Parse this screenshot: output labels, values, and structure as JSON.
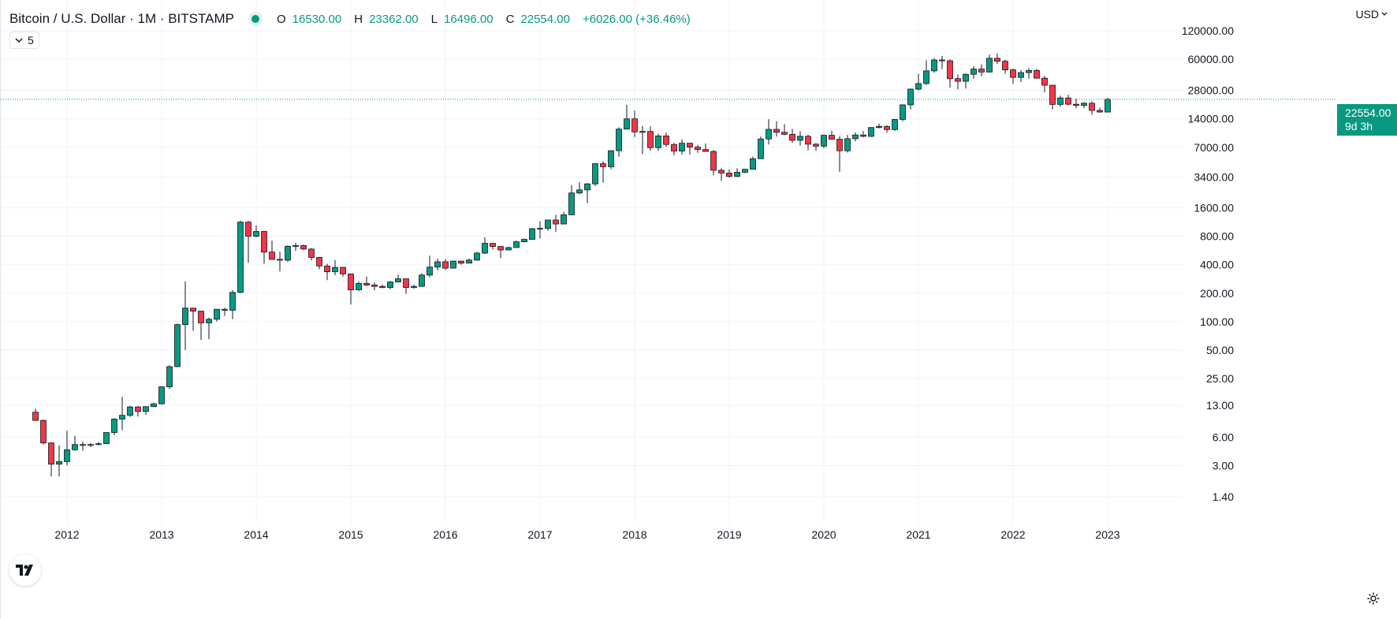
{
  "header": {
    "symbol": "Bitcoin / U.S. Dollar · 1M · BITSTAMP",
    "ohlc": {
      "o_label": "O",
      "o_value": "16530.00",
      "h_label": "H",
      "h_value": "23362.00",
      "l_label": "L",
      "l_value": "16496.00",
      "c_label": "C",
      "c_value": "22554.00",
      "change": "+6026.00 (+36.46%)"
    },
    "indicator_count": "5",
    "currency": "USD"
  },
  "last_price": {
    "value": "22554.00",
    "countdown": "9d 3h"
  },
  "colors": {
    "up": "#089981",
    "down": "#f23645",
    "grid": "#f0f3fa",
    "axis_text": "#131722"
  },
  "icons": [
    "chevron-down-icon",
    "tradingview-logo-icon",
    "gear-icon"
  ],
  "chart_data": {
    "type": "candlestick",
    "scale": "log",
    "interval": "monthly",
    "x": [
      "2011-09",
      "2011-10",
      "2011-11",
      "2011-12",
      "2012-01",
      "2012-02",
      "2012-03",
      "2012-04",
      "2012-05",
      "2012-06",
      "2012-07",
      "2012-08",
      "2012-09",
      "2012-10",
      "2012-11",
      "2012-12",
      "2013-01",
      "2013-02",
      "2013-03",
      "2013-04",
      "2013-05",
      "2013-06",
      "2013-07",
      "2013-08",
      "2013-09",
      "2013-10",
      "2013-11",
      "2013-12",
      "2014-01",
      "2014-02",
      "2014-03",
      "2014-04",
      "2014-05",
      "2014-06",
      "2014-07",
      "2014-08",
      "2014-09",
      "2014-10",
      "2014-11",
      "2014-12",
      "2015-01",
      "2015-02",
      "2015-03",
      "2015-04",
      "2015-05",
      "2015-06",
      "2015-07",
      "2015-08",
      "2015-09",
      "2015-10",
      "2015-11",
      "2015-12",
      "2016-01",
      "2016-02",
      "2016-03",
      "2016-04",
      "2016-05",
      "2016-06",
      "2016-07",
      "2016-08",
      "2016-09",
      "2016-10",
      "2016-11",
      "2016-12",
      "2017-01",
      "2017-02",
      "2017-03",
      "2017-04",
      "2017-05",
      "2017-06",
      "2017-07",
      "2017-08",
      "2017-09",
      "2017-10",
      "2017-11",
      "2017-12",
      "2018-01",
      "2018-02",
      "2018-03",
      "2018-04",
      "2018-05",
      "2018-06",
      "2018-07",
      "2018-08",
      "2018-09",
      "2018-10",
      "2018-11",
      "2018-12",
      "2019-01",
      "2019-02",
      "2019-03",
      "2019-04",
      "2019-05",
      "2019-06",
      "2019-07",
      "2019-08",
      "2019-09",
      "2019-10",
      "2019-11",
      "2019-12",
      "2020-01",
      "2020-02",
      "2020-03",
      "2020-04",
      "2020-05",
      "2020-06",
      "2020-07",
      "2020-08",
      "2020-09",
      "2020-10",
      "2020-11",
      "2020-12",
      "2021-01",
      "2021-02",
      "2021-03",
      "2021-04",
      "2021-05",
      "2021-06",
      "2021-07",
      "2021-08",
      "2021-09",
      "2021-10",
      "2021-11",
      "2021-12",
      "2022-01",
      "2022-02",
      "2022-03",
      "2022-04",
      "2022-05",
      "2022-06",
      "2022-07",
      "2022-08",
      "2022-09",
      "2022-10",
      "2022-11",
      "2022-12",
      "2023-01"
    ],
    "ohlc": [
      [
        11.0,
        12.0,
        9.5,
        9.0
      ],
      [
        9.0,
        9.2,
        5.0,
        5.2
      ],
      [
        5.2,
        5.3,
        2.3,
        3.1
      ],
      [
        3.1,
        4.9,
        2.3,
        3.3
      ],
      [
        3.3,
        7.0,
        3.0,
        4.4
      ],
      [
        4.4,
        6.2,
        4.3,
        5.0
      ],
      [
        5.0,
        5.4,
        4.3,
        4.9
      ],
      [
        4.9,
        5.2,
        4.7,
        5.0
      ],
      [
        5.0,
        5.3,
        4.9,
        5.1
      ],
      [
        5.1,
        6.7,
        5.2,
        6.7
      ],
      [
        6.7,
        9.5,
        6.3,
        9.3
      ],
      [
        9.3,
        16.0,
        7.1,
        10.2
      ],
      [
        10.2,
        12.9,
        9.8,
        12.5
      ],
      [
        12.5,
        12.8,
        9.9,
        11.2
      ],
      [
        11.2,
        12.6,
        10.3,
        12.6
      ],
      [
        12.6,
        13.7,
        12.5,
        13.5
      ],
      [
        13.5,
        20.7,
        13.2,
        20.4
      ],
      [
        20.4,
        34.5,
        19.5,
        33.4
      ],
      [
        33.4,
        95.0,
        33.0,
        93.0
      ],
      [
        93.0,
        266.0,
        50.0,
        139.0
      ],
      [
        139.0,
        140.0,
        80.0,
        129.0
      ],
      [
        129.0,
        130.0,
        64.0,
        97.0
      ],
      [
        97.0,
        110.0,
        65.0,
        106.0
      ],
      [
        106.0,
        130.0,
        100.0,
        135.0
      ],
      [
        135.0,
        140.0,
        115.0,
        132.0
      ],
      [
        132.0,
        215.0,
        106.0,
        204.0
      ],
      [
        204.0,
        1170.0,
        200.0,
        1130.0
      ],
      [
        1130.0,
        1163.0,
        420.0,
        800.0
      ],
      [
        800.0,
        1040.0,
        780.0,
        900.0
      ],
      [
        900.0,
        915.0,
        410.0,
        545.0
      ],
      [
        545.0,
        720.0,
        450.0,
        456.0
      ],
      [
        456.0,
        550.0,
        340.0,
        447.0
      ],
      [
        447.0,
        640.0,
        430.0,
        627.0
      ],
      [
        627.0,
        680.0,
        560.0,
        638.0
      ],
      [
        638.0,
        655.0,
        570.0,
        586.0
      ],
      [
        586.0,
        600.0,
        445.0,
        478.0
      ],
      [
        478.0,
        485.0,
        360.0,
        388.0
      ],
      [
        388.0,
        410.0,
        275.0,
        337.0
      ],
      [
        337.0,
        450.0,
        310.0,
        375.0
      ],
      [
        375.0,
        380.0,
        300.0,
        320.0
      ],
      [
        320.0,
        320.0,
        152.0,
        217.0
      ],
      [
        217.0,
        265.0,
        210.0,
        254.0
      ],
      [
        254.0,
        300.0,
        238.0,
        244.0
      ],
      [
        244.0,
        260.0,
        215.0,
        236.0
      ],
      [
        236.0,
        247.0,
        225.0,
        230.0
      ],
      [
        230.0,
        267.0,
        220.0,
        263.0
      ],
      [
        263.0,
        315.0,
        270.0,
        284.0
      ],
      [
        284.0,
        285.0,
        197.0,
        230.0
      ],
      [
        230.0,
        247.0,
        223.0,
        236.0
      ],
      [
        236.0,
        325.0,
        236.0,
        311.0
      ],
      [
        311.0,
        500.0,
        295.0,
        378.0
      ],
      [
        378.0,
        465.0,
        347.0,
        430.0
      ],
      [
        430.0,
        460.0,
        352.0,
        368.0
      ],
      [
        368.0,
        442.0,
        366.0,
        437.0
      ],
      [
        437.0,
        440.0,
        400.0,
        416.0
      ],
      [
        416.0,
        467.0,
        415.0,
        448.0
      ],
      [
        448.0,
        550.0,
        440.0,
        531.0
      ],
      [
        531.0,
        780.0,
        520.0,
        674.0
      ],
      [
        674.0,
        680.0,
        580.0,
        624.0
      ],
      [
        624.0,
        620.0,
        470.0,
        573.0
      ],
      [
        573.0,
        620.0,
        570.0,
        608.0
      ],
      [
        608.0,
        720.0,
        605.0,
        700.0
      ],
      [
        700.0,
        755.0,
        690.0,
        742.0
      ],
      [
        742.0,
        980.0,
        735.0,
        963.0
      ],
      [
        963.0,
        1150.0,
        760.0,
        970.0
      ],
      [
        970.0,
        1200.0,
        915.0,
        1190.0
      ],
      [
        1190.0,
        1350.0,
        890.0,
        1080.0
      ],
      [
        1080.0,
        1450.0,
        1070.0,
        1350.0
      ],
      [
        1350.0,
        2780.0,
        1350.0,
        2300.0
      ],
      [
        2300.0,
        3000.0,
        2230.0,
        2480.0
      ],
      [
        2480.0,
        2935.0,
        1800.0,
        2870.0
      ],
      [
        2870.0,
        4740.0,
        2720.0,
        4700.0
      ],
      [
        4700.0,
        4980.0,
        2950.0,
        4360.0
      ],
      [
        4360.0,
        6470.0,
        4110.0,
        6450.0
      ],
      [
        6450.0,
        11400.0,
        5550.0,
        10900.0
      ],
      [
        10900.0,
        19660.0,
        10900.0,
        14000.0
      ],
      [
        14000.0,
        17170.0,
        9000.0,
        10200.0
      ],
      [
        10200.0,
        11790.0,
        5920.0,
        10300.0
      ],
      [
        10300.0,
        11700.0,
        6450.0,
        6930.0
      ],
      [
        6930.0,
        9770.0,
        6430.0,
        9240.0
      ],
      [
        9240.0,
        10000.0,
        7080.0,
        7500.0
      ],
      [
        7500.0,
        7800.0,
        5750.0,
        6390.0
      ],
      [
        6390.0,
        8500.0,
        5860.0,
        7730.0
      ],
      [
        7730.0,
        7800.0,
        5880.0,
        7030.0
      ],
      [
        7030.0,
        7420.0,
        6120.0,
        6630.0
      ],
      [
        6630.0,
        7700.0,
        6280.0,
        6320.0
      ],
      [
        6320.0,
        6550.0,
        3550.0,
        4000.0
      ],
      [
        4000.0,
        4200.0,
        3110.0,
        3740.0
      ],
      [
        3740.0,
        4100.0,
        3350.0,
        3440.0
      ],
      [
        3440.0,
        4200.0,
        3390.0,
        3810.0
      ],
      [
        3810.0,
        4100.0,
        3720.0,
        4100.0
      ],
      [
        4100.0,
        5600.0,
        4080.0,
        5300.0
      ],
      [
        5300.0,
        9100.0,
        5300.0,
        8580.0
      ],
      [
        8580.0,
        13880.0,
        7500.0,
        10840.0
      ],
      [
        10840.0,
        13180.0,
        9080.0,
        10090.0
      ],
      [
        10090.0,
        12300.0,
        9400.0,
        9600.0
      ],
      [
        9600.0,
        10950.0,
        7800.0,
        8300.0
      ],
      [
        8300.0,
        10350.0,
        7300.0,
        9150.0
      ],
      [
        9150.0,
        9500.0,
        6500.0,
        7550.0
      ],
      [
        7550.0,
        7750.0,
        6430.0,
        7200.0
      ],
      [
        7200.0,
        9580.0,
        6860.0,
        9380.0
      ],
      [
        9380.0,
        10500.0,
        8450.0,
        8520.0
      ],
      [
        8520.0,
        9200.0,
        3850.0,
        6430.0
      ],
      [
        6430.0,
        9470.0,
        6150.0,
        8630.0
      ],
      [
        8630.0,
        10070.0,
        8100.0,
        9450.0
      ],
      [
        9450.0,
        10400.0,
        8900.0,
        9140.0
      ],
      [
        9140.0,
        11450.0,
        9000.0,
        11340.0
      ],
      [
        11340.0,
        12470.0,
        11090.0,
        11650.0
      ],
      [
        11650.0,
        12000.0,
        10000.0,
        10780.0
      ],
      [
        10780.0,
        14000.0,
        10450.0,
        13800.0
      ],
      [
        13800.0,
        19900.0,
        13200.0,
        19700.0
      ],
      [
        19700.0,
        29300.0,
        17600.0,
        28900.0
      ],
      [
        28900.0,
        42000.0,
        28000.0,
        33100.0
      ],
      [
        33100.0,
        58300.0,
        32000.0,
        45100.0
      ],
      [
        45100.0,
        61800.0,
        43000.0,
        58800.0
      ],
      [
        58800.0,
        64900.0,
        47000.0,
        57700.0
      ],
      [
        57700.0,
        59500.0,
        30000.0,
        37300.0
      ],
      [
        37300.0,
        41300.0,
        28800.0,
        35000.0
      ],
      [
        35000.0,
        42300.0,
        29300.0,
        41500.0
      ],
      [
        41500.0,
        50500.0,
        37300.0,
        47100.0
      ],
      [
        47100.0,
        52900.0,
        39600.0,
        43800.0
      ],
      [
        43800.0,
        67000.0,
        43300.0,
        61300.0
      ],
      [
        61300.0,
        69000.0,
        53200.0,
        57000.0
      ],
      [
        57000.0,
        59100.0,
        42000.0,
        46200.0
      ],
      [
        46200.0,
        47900.0,
        32900.0,
        38500.0
      ],
      [
        38500.0,
        45800.0,
        34300.0,
        43200.0
      ],
      [
        43200.0,
        48200.0,
        37200.0,
        45500.0
      ],
      [
        45500.0,
        47500.0,
        37700.0,
        37700.0
      ],
      [
        37700.0,
        40000.0,
        26700.0,
        31800.0
      ],
      [
        31800.0,
        31900.0,
        17600.0,
        19900.0
      ],
      [
        19900.0,
        24700.0,
        18800.0,
        23300.0
      ],
      [
        23300.0,
        25200.0,
        19500.0,
        20000.0
      ],
      [
        20000.0,
        22800.0,
        18100.0,
        19400.0
      ],
      [
        19400.0,
        21100.0,
        18200.0,
        20500.0
      ],
      [
        20500.0,
        21400.0,
        15500.0,
        17200.0
      ],
      [
        17200.0,
        18400.0,
        16300.0,
        16530.0
      ],
      [
        16530.0,
        23362.0,
        16496.0,
        22554.0
      ]
    ],
    "y_ticks": [
      "120000.00",
      "60000.00",
      "28000.00",
      "14000.00",
      "7000.00",
      "3400.00",
      "1600.00",
      "800.00",
      "400.00",
      "200.00",
      "100.00",
      "50.00",
      "25.00",
      "13.00",
      "6.00",
      "3.00",
      "1.40"
    ],
    "x_ticks": [
      "2012",
      "2013",
      "2014",
      "2015",
      "2016",
      "2017",
      "2018",
      "2019",
      "2020",
      "2021",
      "2022",
      "2023"
    ],
    "last_value": 22554.0,
    "grid": true
  }
}
